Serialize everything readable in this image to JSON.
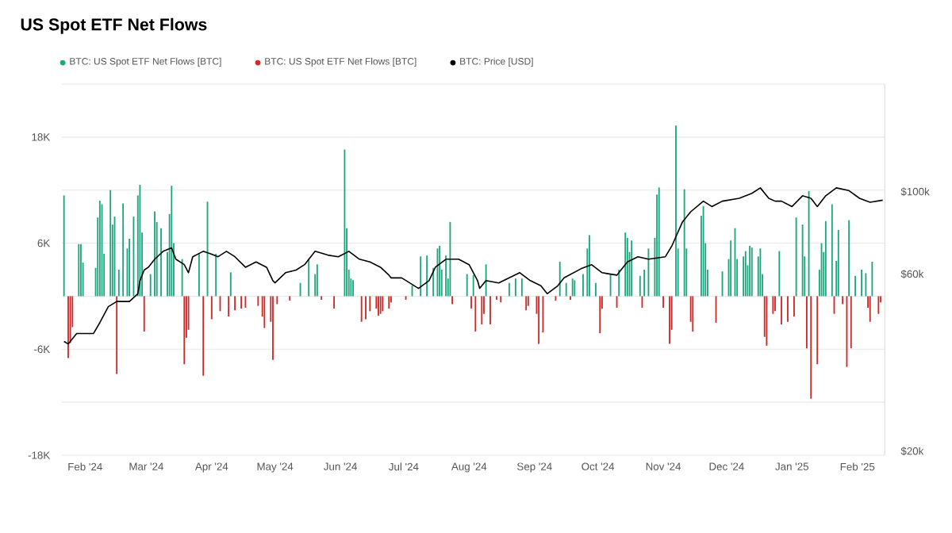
{
  "chart_data": {
    "type": "bar",
    "title": "US Spot ETF Net Flows",
    "xlim": [
      "2024-01-21",
      "2025-02-14"
    ],
    "xticks": [
      {
        "value": "2024-02-01",
        "label": "Feb '24"
      },
      {
        "value": "2024-03-01",
        "label": "Mar '24"
      },
      {
        "value": "2024-04-01",
        "label": "Apr '24"
      },
      {
        "value": "2024-05-01",
        "label": "May '24"
      },
      {
        "value": "2024-06-01",
        "label": "Jun '24"
      },
      {
        "value": "2024-07-01",
        "label": "Jul '24"
      },
      {
        "value": "2024-08-01",
        "label": "Aug '24"
      },
      {
        "value": "2024-09-01",
        "label": "Sep '24"
      },
      {
        "value": "2024-10-01",
        "label": "Oct '24"
      },
      {
        "value": "2024-11-01",
        "label": "Nov '24"
      },
      {
        "value": "2024-12-01",
        "label": "Dec '24"
      },
      {
        "value": "2025-01-01",
        "label": "Jan '25"
      },
      {
        "value": "2025-02-01",
        "label": "Feb '25"
      }
    ],
    "ylim": [
      -18000,
      24000
    ],
    "yticks": [
      {
        "value": -18000,
        "label": "-18K"
      },
      {
        "value": -12000,
        "label": null
      },
      {
        "value": -6000,
        "label": "-6K"
      },
      {
        "value": 0,
        "label": null
      },
      {
        "value": 6000,
        "label": "6K"
      },
      {
        "value": 12000,
        "label": null
      },
      {
        "value": 18000,
        "label": "18K"
      },
      {
        "value": 24000,
        "label": null
      }
    ],
    "y2lim": [
      19500,
      195000
    ],
    "y2ticks": [
      {
        "value": 20000,
        "label": "$20k"
      },
      {
        "value": 60000,
        "label": "$60k"
      },
      {
        "value": 100000,
        "label": "$100k"
      }
    ],
    "log": "y2",
    "grid": "y",
    "legend": "top left",
    "series": [
      {
        "name": "BTC: US Spot ETF Net Flows [BTC]",
        "color": "#1fa67e",
        "x": [
          "2024-01-22",
          "2024-01-29",
          "2024-01-30",
          "2024-01-31",
          "2024-02-06",
          "2024-02-07",
          "2024-02-08",
          "2024-02-09",
          "2024-02-10",
          "2024-02-13",
          "2024-02-14",
          "2024-02-15",
          "2024-02-17",
          "2024-02-19",
          "2024-02-21",
          "2024-02-22",
          "2024-02-24",
          "2024-02-26",
          "2024-02-27",
          "2024-02-28",
          "2024-03-03",
          "2024-03-05",
          "2024-03-06",
          "2024-03-08",
          "2024-03-11",
          "2024-03-12",
          "2024-03-13",
          "2024-03-14",
          "2024-03-18",
          "2024-03-26",
          "2024-03-30",
          "2024-04-03",
          "2024-04-10",
          "2024-05-13",
          "2024-05-17",
          "2024-05-20",
          "2024-05-21",
          "2024-06-03",
          "2024-06-04",
          "2024-06-05",
          "2024-06-06",
          "2024-06-07",
          "2024-07-05",
          "2024-07-09",
          "2024-07-12",
          "2024-07-15",
          "2024-07-17",
          "2024-07-18",
          "2024-07-19",
          "2024-07-21",
          "2024-07-22",
          "2024-07-23",
          "2024-07-31",
          "2024-08-03",
          "2024-08-09",
          "2024-08-20",
          "2024-08-23",
          "2024-08-26",
          "2024-09-13",
          "2024-09-16",
          "2024-09-19",
          "2024-09-20",
          "2024-09-24",
          "2024-09-26",
          "2024-09-27",
          "2024-09-30",
          "2024-10-07",
          "2024-10-11",
          "2024-10-14",
          "2024-10-15",
          "2024-10-16",
          "2024-10-17",
          "2024-10-21",
          "2024-10-23",
          "2024-10-25",
          "2024-10-28",
          "2024-10-29",
          "2024-10-30",
          "2024-11-07",
          "2024-11-08",
          "2024-11-11",
          "2024-11-12",
          "2024-11-19",
          "2024-11-20",
          "2024-11-21",
          "2024-11-22",
          "2024-11-29",
          "2024-12-02",
          "2024-12-03",
          "2024-12-05",
          "2024-12-06",
          "2024-12-09",
          "2024-12-10",
          "2024-12-11",
          "2024-12-12",
          "2024-12-13",
          "2024-12-16",
          "2024-12-17",
          "2024-12-18",
          "2024-12-26",
          "2025-01-03",
          "2025-01-06",
          "2025-01-07",
          "2025-01-09",
          "2025-01-14",
          "2025-01-15",
          "2025-01-16",
          "2025-01-17",
          "2025-01-20",
          "2025-01-22",
          "2025-01-23",
          "2025-01-28",
          "2025-01-31",
          "2025-02-03",
          "2025-02-05",
          "2025-02-08"
        ],
        "values": [
          11400,
          5900,
          5900,
          3800,
          3200,
          8900,
          10800,
          10400,
          4800,
          12000,
          8100,
          9000,
          3000,
          10500,
          5400,
          6500,
          9000,
          11400,
          12600,
          7200,
          2500,
          9600,
          8400,
          7700,
          5000,
          9300,
          12500,
          6000,
          4200,
          4800,
          10700,
          4800,
          2700,
          1500,
          4200,
          2500,
          3600,
          16600,
          7700,
          3000,
          2000,
          1800,
          1200,
          4500,
          4600,
          3200,
          5400,
          5700,
          3000,
          4600,
          2000,
          8400,
          2500,
          2400,
          3600,
          1500,
          2000,
          2000,
          3900,
          1500,
          2000,
          1800,
          2500,
          5400,
          6900,
          1500,
          2500,
          3000,
          7200,
          6600,
          5000,
          6300,
          2300,
          3000,
          5400,
          6600,
          11500,
          12300,
          19300,
          5400,
          12100,
          5400,
          9100,
          10200,
          6000,
          3000,
          2800,
          4200,
          6300,
          7700,
          4200,
          4500,
          5100,
          3500,
          5700,
          5500,
          4500,
          5400,
          2500,
          5100,
          8900,
          8100,
          4500,
          11900,
          3000,
          6000,
          5000,
          8500,
          10400,
          4000,
          7500,
          8600,
          2300,
          3000,
          2600,
          3900
        ]
      },
      {
        "name": "BTC: US Spot ETF Net Flows [BTC]",
        "color": "#cc2b2b",
        "x": [
          "2024-01-24",
          "2024-01-25",
          "2024-01-26",
          "2024-02-16",
          "2024-02-29",
          "2024-03-19",
          "2024-03-20",
          "2024-03-21",
          "2024-03-28",
          "2024-04-01",
          "2024-04-05",
          "2024-04-09",
          "2024-04-12",
          "2024-04-15",
          "2024-04-17",
          "2024-04-23",
          "2024-04-25",
          "2024-04-26",
          "2024-04-29",
          "2024-04-30",
          "2024-05-02",
          "2024-05-08",
          "2024-05-23",
          "2024-05-29",
          "2024-06-11",
          "2024-06-13",
          "2024-06-15",
          "2024-06-18",
          "2024-06-19",
          "2024-06-20",
          "2024-06-21",
          "2024-06-24",
          "2024-06-25",
          "2024-07-02",
          "2024-07-24",
          "2024-08-02",
          "2024-08-04",
          "2024-08-07",
          "2024-08-08",
          "2024-08-11",
          "2024-08-14",
          "2024-08-16",
          "2024-08-28",
          "2024-08-29",
          "2024-09-02",
          "2024-09-03",
          "2024-09-05",
          "2024-09-11",
          "2024-09-18",
          "2024-10-02",
          "2024-10-03",
          "2024-10-10",
          "2024-10-22",
          "2024-11-01",
          "2024-11-04",
          "2024-11-05",
          "2024-11-14",
          "2024-11-15",
          "2024-11-26",
          "2024-12-19",
          "2024-12-20",
          "2024-12-23",
          "2024-12-24",
          "2024-12-27",
          "2024-12-30",
          "2025-01-02",
          "2025-01-08",
          "2025-01-10",
          "2025-01-13",
          "2025-01-21",
          "2025-01-25",
          "2025-01-27",
          "2025-01-29",
          "2025-02-06",
          "2025-02-07",
          "2025-02-11",
          "2025-02-12"
        ],
        "values": [
          -7000,
          -5300,
          -3500,
          -8800,
          -4000,
          -7700,
          -4700,
          -3800,
          -9000,
          -2600,
          -1700,
          -2300,
          -1600,
          -1400,
          -1300,
          -1100,
          -2300,
          -3600,
          -2900,
          -7200,
          -900,
          -500,
          -400,
          -1400,
          -2900,
          -2600,
          -1700,
          -1400,
          -2200,
          -2000,
          -1700,
          -1400,
          -700,
          -400,
          -900,
          -1400,
          -4000,
          -3200,
          -2000,
          -3200,
          -400,
          -700,
          -1600,
          -1100,
          -2000,
          -5400,
          -4100,
          -500,
          -400,
          -4200,
          -1400,
          -1300,
          -1300,
          -1300,
          -5400,
          -3800,
          -2900,
          -4000,
          -3000,
          -4600,
          -5600,
          -2000,
          -1700,
          -3200,
          -2900,
          -2300,
          -5900,
          -11600,
          -7700,
          -2000,
          -900,
          -8000,
          -5900,
          -1300,
          -2900,
          -2000,
          -700
        ]
      },
      {
        "name": "BTC: Price [USD]",
        "type": "line",
        "axis": "y2",
        "color": "#000000",
        "x": [
          "2024-01-22",
          "2024-01-24",
          "2024-01-28",
          "2024-02-05",
          "2024-02-08",
          "2024-02-12",
          "2024-02-16",
          "2024-02-22",
          "2024-02-26",
          "2024-02-27",
          "2024-02-29",
          "2024-03-02",
          "2024-03-05",
          "2024-03-09",
          "2024-03-13",
          "2024-03-15",
          "2024-03-19",
          "2024-03-21",
          "2024-03-23",
          "2024-03-28",
          "2024-04-01",
          "2024-04-04",
          "2024-04-08",
          "2024-04-12",
          "2024-04-17",
          "2024-04-22",
          "2024-04-27",
          "2024-04-30",
          "2024-05-01",
          "2024-05-06",
          "2024-05-11",
          "2024-05-15",
          "2024-05-20",
          "2024-05-26",
          "2024-05-31",
          "2024-06-05",
          "2024-06-10",
          "2024-06-15",
          "2024-06-20",
          "2024-06-24",
          "2024-06-25",
          "2024-06-30",
          "2024-07-08",
          "2024-07-13",
          "2024-07-16",
          "2024-07-21",
          "2024-07-27",
          "2024-08-01",
          "2024-08-05",
          "2024-08-06",
          "2024-08-09",
          "2024-08-15",
          "2024-08-20",
          "2024-08-25",
          "2024-08-30",
          "2024-09-04",
          "2024-09-07",
          "2024-09-12",
          "2024-09-15",
          "2024-09-23",
          "2024-09-28",
          "2024-10-03",
          "2024-10-10",
          "2024-10-15",
          "2024-10-20",
          "2024-10-25",
          "2024-11-02",
          "2024-11-05",
          "2024-11-10",
          "2024-11-14",
          "2024-11-20",
          "2024-11-24",
          "2024-11-29",
          "2024-12-07",
          "2024-12-13",
          "2024-12-17",
          "2024-12-21",
          "2024-12-24",
          "2024-12-27",
          "2025-01-01",
          "2025-01-06",
          "2025-01-10",
          "2025-01-13",
          "2025-01-17",
          "2025-01-22",
          "2025-01-28",
          "2025-02-02",
          "2025-02-07",
          "2025-02-13"
        ],
        "values": [
          39500,
          38900,
          41500,
          41500,
          44400,
          49000,
          50600,
          50600,
          53100,
          57600,
          61500,
          62600,
          65800,
          69100,
          70600,
          65800,
          63600,
          60500,
          66800,
          69100,
          67900,
          66800,
          69100,
          66800,
          62600,
          64700,
          62600,
          57600,
          56800,
          60500,
          61500,
          63600,
          69100,
          67500,
          66800,
          69100,
          65800,
          64700,
          62600,
          59600,
          58600,
          58600,
          54900,
          57600,
          62600,
          65800,
          65800,
          63600,
          57600,
          54900,
          57600,
          56800,
          58600,
          60500,
          57600,
          55800,
          53100,
          55800,
          58600,
          62000,
          63600,
          60500,
          59600,
          64700,
          66800,
          65800,
          66800,
          71300,
          82700,
          88300,
          94300,
          91200,
          94300,
          96000,
          99000,
          102400,
          96000,
          94300,
          94300,
          91200,
          97500,
          96000,
          91200,
          97500,
          102400,
          100700,
          96000,
          93700,
          94900
        ]
      }
    ]
  }
}
